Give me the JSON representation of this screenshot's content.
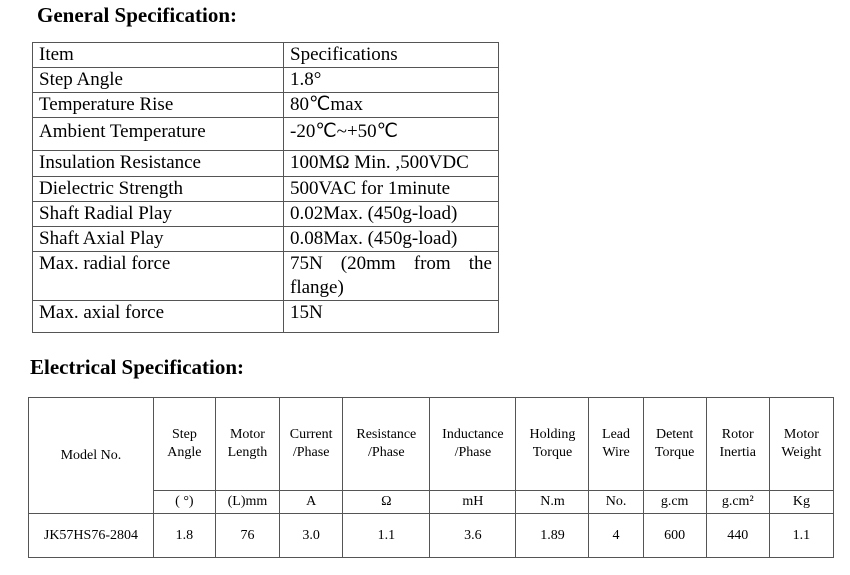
{
  "general": {
    "title": "General Specification:",
    "header": [
      "Item",
      "Specifications"
    ],
    "rows": [
      [
        "Step Angle",
        "1.8°"
      ],
      [
        "Temperature Rise",
        "80℃max"
      ],
      [
        "Ambient Temperature",
        "-20℃~+50℃"
      ],
      [
        "Insulation Resistance",
        "100MΩ Min. ,500VDC"
      ],
      [
        "Dielectric Strength",
        "500VAC for 1minute"
      ],
      [
        "Shaft Radial Play",
        "0.02Max. (450g-load)"
      ],
      [
        "Shaft Axial Play",
        "0.08Max. (450g-load)"
      ],
      [
        "Max. radial force",
        "75N (20mm from the flange)"
      ],
      [
        "Max. axial force",
        "15N"
      ]
    ]
  },
  "electrical": {
    "title": "Electrical Specification:",
    "headers": [
      "Model No.",
      "Step\nAngle",
      "Motor\nLength",
      "Current\n/Phase",
      "Resistance\n/Phase",
      "Inductance\n/Phase",
      "Holding\nTorque",
      "Lead\nWire",
      "Detent\nTorque",
      "Rotor\nInertia",
      "Motor\nWeight"
    ],
    "units": [
      "( °)",
      "(L)mm",
      "A",
      "Ω",
      "mH",
      "N.m",
      "No.",
      "g.cm",
      "g.cm²",
      "Kg"
    ],
    "rows": [
      [
        "JK57HS76-2804",
        "1.8",
        "76",
        "3.0",
        "1.1",
        "3.6",
        "1.89",
        "4",
        "600",
        "440",
        "1.1"
      ]
    ]
  }
}
